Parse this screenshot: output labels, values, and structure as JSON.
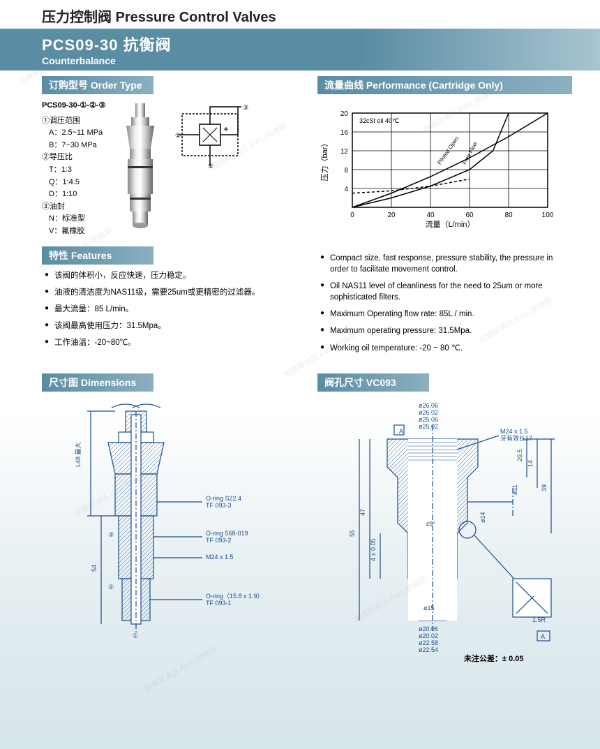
{
  "category_title": "压力控制阀 Pressure Control Valves",
  "header": {
    "model": "PCS09-30 抗衡阀",
    "sub": "Counterbalance"
  },
  "order": {
    "label": "订购型号 Order Type",
    "code": "PCS09-30-①-②-③",
    "groups": [
      {
        "h": "①调压范围",
        "items": [
          "A：2.5~11 MPa",
          "B：7~30 MPa"
        ]
      },
      {
        "h": "②导压比",
        "items": [
          "T：1:3",
          "Q：1:4.5",
          "D：1:10"
        ]
      },
      {
        "h": "③油封",
        "items": [
          "N：标准型",
          "V：氟橡胶"
        ]
      }
    ]
  },
  "performance": {
    "label": "流量曲线 Performance (Cartridge Only)",
    "chart": {
      "type": "line",
      "xlabel": "流量（L/min）",
      "ylabel": "压力（bar）",
      "xlim": [
        0,
        100
      ],
      "xtick_step": 20,
      "ylim": [
        0,
        20
      ],
      "yticks": [
        4,
        8,
        12,
        16,
        20
      ],
      "note": "32cSt oil 40℃",
      "grid_color": "#000000",
      "line_color": "#000000",
      "background_color": "#ffffff",
      "series": [
        {
          "name": "Piloted Open",
          "dash": false,
          "points": [
            [
              0,
              0
            ],
            [
              20,
              3
            ],
            [
              40,
              6.5
            ],
            [
              60,
              10.5
            ],
            [
              80,
              15
            ],
            [
              100,
              20
            ]
          ]
        },
        {
          "name": "Free Flow",
          "dash": false,
          "points": [
            [
              0,
              0
            ],
            [
              20,
              2
            ],
            [
              40,
              4.5
            ],
            [
              60,
              8
            ],
            [
              72,
              12
            ],
            [
              80,
              20
            ]
          ]
        },
        {
          "name": "dash",
          "dash": true,
          "points": [
            [
              0,
              3
            ],
            [
              20,
              3.5
            ],
            [
              40,
              4.5
            ],
            [
              60,
              6
            ]
          ]
        }
      ]
    }
  },
  "features": {
    "label": "特性 Features",
    "cn": [
      "该阀的体积小，反应快速，压力稳定。",
      "油液的清洁度为NAS11级，需要25um或更精密的过滤器。",
      "最大流量：85 L/min。",
      "该阀最高使用压力：31.5Mpa。",
      "工作油温：-20~80℃。"
    ],
    "en": [
      "Compact size, fast response, pressure stability, the pressure in order to facilitate movement control.",
      "Oil NAS11 level of cleanliness for the need to 25um or more sophisticated filters.",
      "Maximum Operating flow rate: 85L / min.",
      "Maximum operating pressure: 31.5Mpa.",
      "Working oil temperature: -20 ~ 80 ℃."
    ]
  },
  "dimensions": {
    "label": "尺寸图 Dimensions",
    "callouts": [
      "O-ring S22.4",
      "TF 093-3",
      "O-ring 568-019",
      "TF 093-2",
      "M24 x 1.5",
      "O-ring（15.8 x 1.9）",
      "TF 093-1"
    ],
    "dims": [
      "L48 最大",
      "54",
      "③",
      "②",
      "①"
    ]
  },
  "cavity": {
    "label": "阀孔尺寸 VC093",
    "dims": [
      "ø26.06",
      "ø26.02",
      "ø25.06",
      "ø25.02",
      "M24 x 1.5",
      "牙有效长17",
      "20.5",
      "14",
      "ø11",
      "39",
      "ø14",
      "45°",
      "47",
      "55",
      "4 ± 0.05",
      "ø15",
      "ø20.06",
      "ø20.02",
      "ø22.58",
      "ø22.54",
      "1.5R",
      "A"
    ],
    "tolerance": "未注公差：± 0.05"
  },
  "watermark_text": "凯维联液压 KWL/凯维联",
  "colors": {
    "header_bg": "#5a8ca3",
    "dim_line": "#1a4d8c",
    "text": "#222222"
  }
}
